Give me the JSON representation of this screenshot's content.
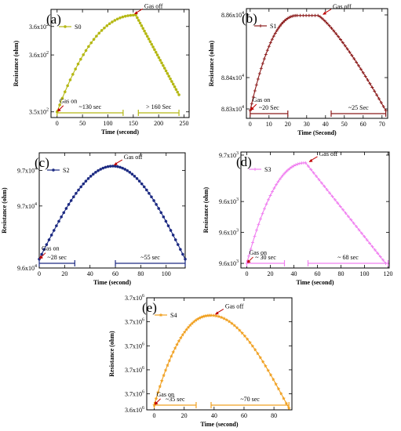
{
  "chart_data": [
    {
      "panel_label": "(a)",
      "type": "line",
      "color": "#b5b814",
      "marker": "circle",
      "series": [
        {
          "name": "S0"
        }
      ],
      "xlabel": "Time (second)",
      "ylabel": "Resistance (ohm)",
      "xlim": [
        -12,
        260
      ],
      "ylim": [
        3.49,
        3.68
      ],
      "xticks": [
        0,
        50,
        100,
        150,
        200,
        250
      ],
      "yticks": [
        {
          "value": 3.5,
          "mant": "3.5x10",
          "exp": "2"
        },
        {
          "value": 3.6,
          "mant": "3.6x10",
          "exp": "2"
        },
        {
          "value": 3.65,
          "mant": "3.6x10",
          "exp": "2"
        }
      ],
      "rise": {
        "t0": 0,
        "t1": 155,
        "y0": 3.5,
        "y1": 3.67,
        "shape": "log"
      },
      "decay": {
        "t1": 240,
        "y": 3.53,
        "shape": "linear"
      },
      "annotations": [
        {
          "text": "Gas off",
          "x": 150,
          "y": 3.67
        },
        {
          "text": "Gas on",
          "x": 0,
          "y": 3.5
        },
        {
          "text": "~130 sec",
          "x1": 0,
          "x2": 130
        },
        {
          "text": "> 160 Sec",
          "x1": 160,
          "x2": 240
        }
      ]
    },
    {
      "panel_label": "(b)",
      "type": "line",
      "color": "#8b1a1a",
      "marker": "plus",
      "series": [
        {
          "name": "S1"
        }
      ],
      "xlabel": "Time (Second)",
      "ylabel": "Resistance (ohm)",
      "xlim": [
        -2,
        73
      ],
      "ylim": [
        8.827,
        8.862
      ],
      "xticks": [
        0,
        10,
        20,
        30,
        40,
        50,
        60,
        70
      ],
      "yticks": [
        {
          "value": 8.83,
          "mant": "8.83x10",
          "exp": "4"
        },
        {
          "value": 8.84,
          "mant": "8.84x10",
          "exp": "4"
        },
        {
          "value": 8.86,
          "mant": "8.86x10",
          "exp": "4"
        }
      ],
      "rise": {
        "t0": 0,
        "t1": 25,
        "y0": 8.8295,
        "y1": 8.8598,
        "shape": "log"
      },
      "plateau": {
        "t1": 36
      },
      "decay": {
        "t1": 72,
        "y": 8.8295,
        "shape": "convex"
      },
      "annotations": [
        {
          "text": "Gas off",
          "x": 38,
          "y": 8.8598
        },
        {
          "text": "Gas on",
          "x": 0,
          "y": 8.8295
        },
        {
          "text": "~20 Sec",
          "x1": 0,
          "x2": 20
        },
        {
          "text": "~25 Sec",
          "x1": 43,
          "x2": 72
        }
      ]
    },
    {
      "panel_label": "(c)",
      "type": "line",
      "color": "#1c2a82",
      "marker": "circle",
      "series": [
        {
          "name": "S2"
        }
      ],
      "xlabel": "Time (second)",
      "ylabel": "Resistance (ohm)",
      "xlim": [
        0,
        115
      ],
      "ylim": [
        9.6,
        9.73
      ],
      "xticks": [
        0,
        20,
        40,
        60,
        80,
        100
      ],
      "yticks": [
        {
          "value": 9.6,
          "mant": "9.6x10",
          "exp": "4"
        },
        {
          "value": 9.67,
          "mant": "9.7x10",
          "exp": "4"
        },
        {
          "value": 9.71,
          "mant": "9.7x10",
          "exp": "4"
        }
      ],
      "rise": {
        "t0": 0,
        "t1": 58,
        "y0": 9.61,
        "y1": 9.715,
        "shape": "dome"
      },
      "decay": {
        "t1": 115,
        "y": 9.61,
        "shape": "dome"
      },
      "annotations": [
        {
          "text": "Gas off",
          "x": 58,
          "y": 9.715
        },
        {
          "text": "Gas on",
          "x": 0,
          "y": 9.61
        },
        {
          "text": "~28 sec",
          "x1": 0,
          "x2": 28
        },
        {
          "text": "~55 sec",
          "x1": 60,
          "x2": 115
        }
      ]
    },
    {
      "panel_label": "(d)",
      "type": "line",
      "color": "#f07ff0",
      "marker": "plus",
      "series": [
        {
          "name": "S3"
        }
      ],
      "xlabel": "Time (second)",
      "ylabel": "Resistance (ohm)",
      "xlim": [
        -5,
        121
      ],
      "ylim": [
        9.597,
        9.672
      ],
      "xticks": [
        0,
        20,
        40,
        60,
        80,
        100,
        120
      ],
      "yticks": [
        {
          "value": 9.6,
          "mant": "9.6x10",
          "exp": "3"
        },
        {
          "value": 9.62,
          "mant": "9.6x10",
          "exp": "3"
        },
        {
          "value": 9.64,
          "mant": "9.6x10",
          "exp": "3"
        },
        {
          "value": 9.67,
          "mant": "9.7x10",
          "exp": "3"
        }
      ],
      "rise": {
        "t0": 0,
        "t1": 50,
        "y0": 9.6,
        "y1": 9.665,
        "shape": "log"
      },
      "decay": {
        "t1": 118,
        "y": 9.6,
        "shape": "linear"
      },
      "annotations": [
        {
          "text": "Gas off",
          "x": 52,
          "y": 9.665
        },
        {
          "text": "Gas on",
          "x": 0,
          "y": 9.6
        },
        {
          "text": "~ 30 sec",
          "x1": 0,
          "x2": 32
        },
        {
          "text": "~ 68 sec",
          "x1": 52,
          "x2": 120
        }
      ]
    },
    {
      "panel_label": "(e)",
      "type": "line",
      "color": "#f0a020",
      "marker": "star",
      "series": [
        {
          "name": "S4"
        }
      ],
      "xlabel": "Time (second)",
      "ylabel": "Resistance (ohm)",
      "xlim": [
        -5,
        92
      ],
      "ylim": [
        0,
        7
      ],
      "xticks": [
        0,
        20,
        40,
        60,
        80
      ],
      "yticks": [
        {
          "value": 0,
          "mant": "3.6x10",
          "exp": "6"
        },
        {
          "value": 1,
          "mant": "3.7x10",
          "exp": "6"
        },
        {
          "value": 2.5,
          "mant": "3.7x10",
          "exp": "6"
        },
        {
          "value": 4,
          "mant": "3.7x10",
          "exp": "6"
        },
        {
          "value": 5.5,
          "mant": "3.7x10",
          "exp": "6"
        },
        {
          "value": 7,
          "mant": "3.7x10",
          "exp": "6"
        }
      ],
      "rise": {
        "t0": 0,
        "t1": 38,
        "y0": 0.3,
        "y1": 5.9,
        "shape": "log"
      },
      "decay": {
        "t1": 90,
        "y": 0.1,
        "shape": "dome"
      },
      "annotations": [
        {
          "text": "Gas off",
          "x": 40,
          "y": 5.9
        },
        {
          "text": "Gas on",
          "x": 0,
          "y": 0.3
        },
        {
          "text": "~35 sec",
          "x1": 0,
          "x2": 28
        },
        {
          "text": "~70 sec",
          "x1": 38,
          "x2": 90
        }
      ]
    }
  ]
}
